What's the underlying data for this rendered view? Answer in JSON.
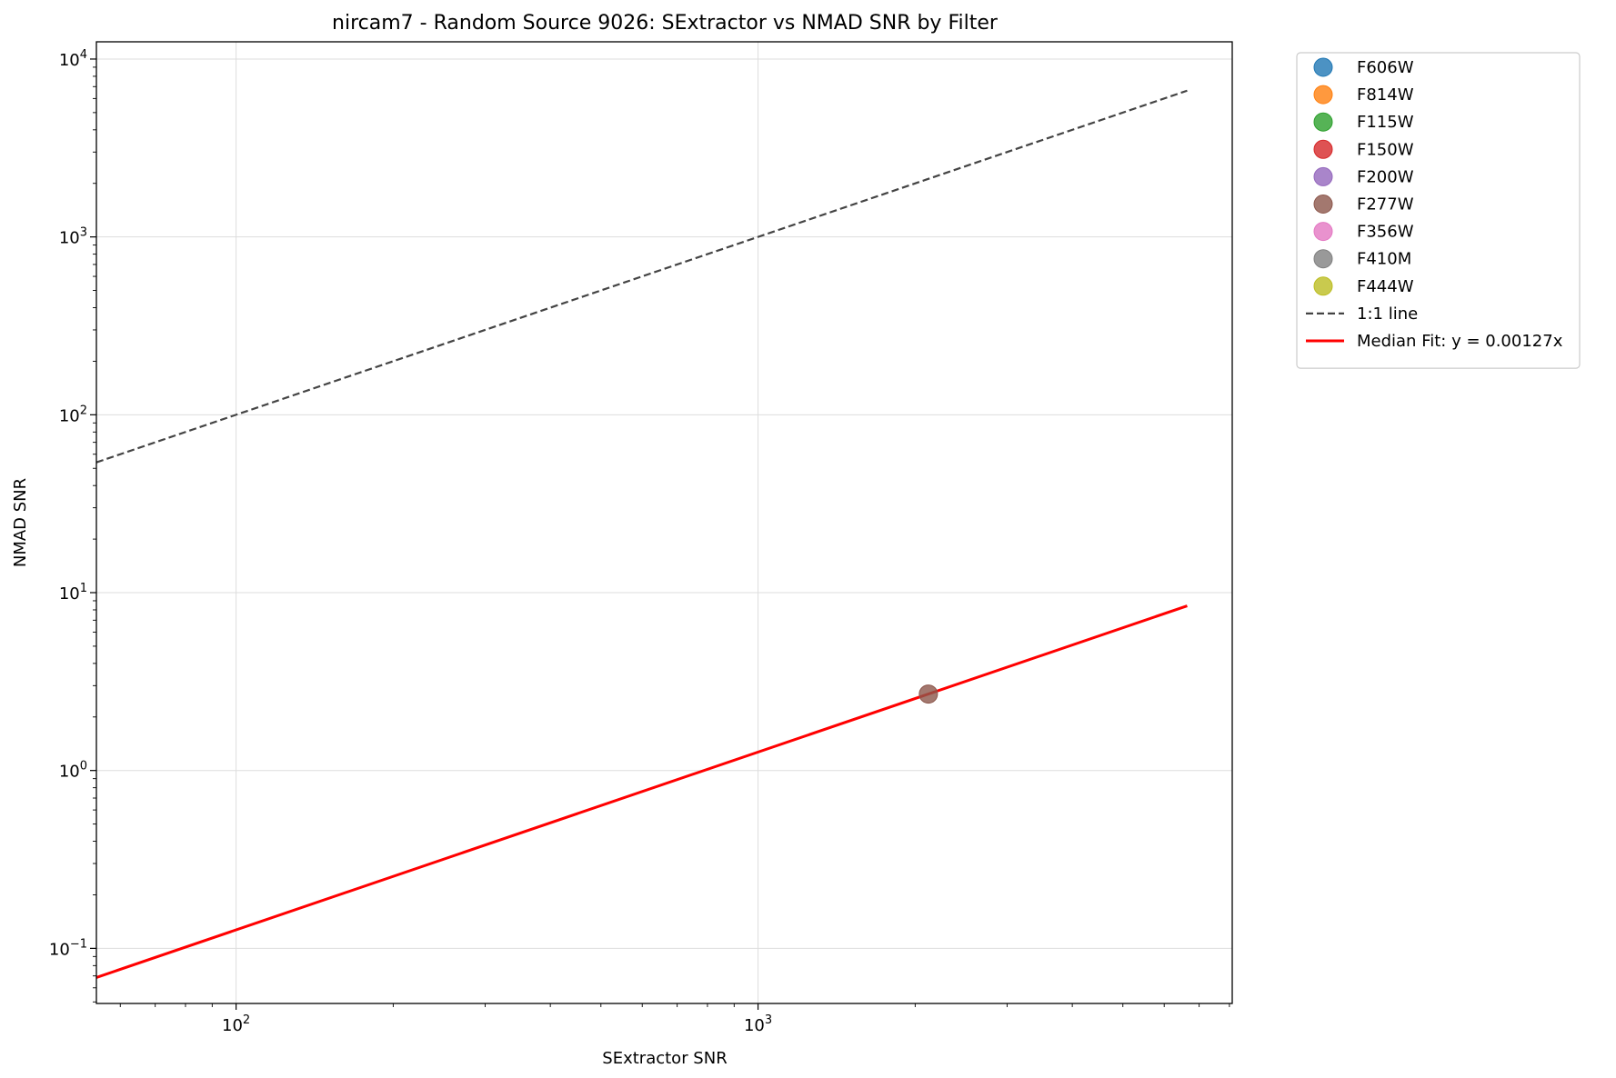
{
  "chart_data": {
    "type": "scatter",
    "title": "nircam7 - Random Source 9026: SExtractor vs NMAD SNR by Filter",
    "xlabel": "SExtractor SNR",
    "ylabel": "NMAD SNR",
    "xscale": "log",
    "yscale": "log",
    "xlim": [
      54,
      8100
    ],
    "ylim": [
      0.049,
      12500
    ],
    "x_ticks": [
      {
        "value": 100,
        "base": "10",
        "exp": "2"
      },
      {
        "value": 1000,
        "base": "10",
        "exp": "3"
      }
    ],
    "y_ticks": [
      {
        "value": 0.1,
        "base": "10",
        "exp": "−1"
      },
      {
        "value": 1,
        "base": "10",
        "exp": "0"
      },
      {
        "value": 10,
        "base": "10",
        "exp": "1"
      },
      {
        "value": 100,
        "base": "10",
        "exp": "2"
      },
      {
        "value": 1000,
        "base": "10",
        "exp": "3"
      },
      {
        "value": 10000,
        "base": "10",
        "exp": "4"
      }
    ],
    "grid": true,
    "legend_position": "outside-top-right",
    "series": [
      {
        "name": "F606W",
        "color": "#1f77b4",
        "points": []
      },
      {
        "name": "F814W",
        "color": "#ff7f0e",
        "points": []
      },
      {
        "name": "F115W",
        "color": "#2ca02c",
        "points": []
      },
      {
        "name": "F150W",
        "color": "#d62728",
        "points": []
      },
      {
        "name": "F200W",
        "color": "#9467bd",
        "points": []
      },
      {
        "name": "F277W",
        "color": "#8c564b",
        "points": [
          {
            "x": 2120,
            "y": 2.69
          }
        ]
      },
      {
        "name": "F356W",
        "color": "#e377c2",
        "points": []
      },
      {
        "name": "F410M",
        "color": "#7f7f7f",
        "points": []
      },
      {
        "name": "F444W",
        "color": "#bcbd22",
        "points": []
      }
    ],
    "lines": [
      {
        "name": "1:1 line",
        "color": "#444444",
        "style": "dashed",
        "x": [
          54,
          6640
        ],
        "y": [
          54,
          6640
        ]
      },
      {
        "name": "Median Fit: y = 0.00127x",
        "color": "#ff0000",
        "style": "solid",
        "x": [
          54,
          6640
        ],
        "y": [
          0.0686,
          8.43
        ]
      }
    ]
  }
}
